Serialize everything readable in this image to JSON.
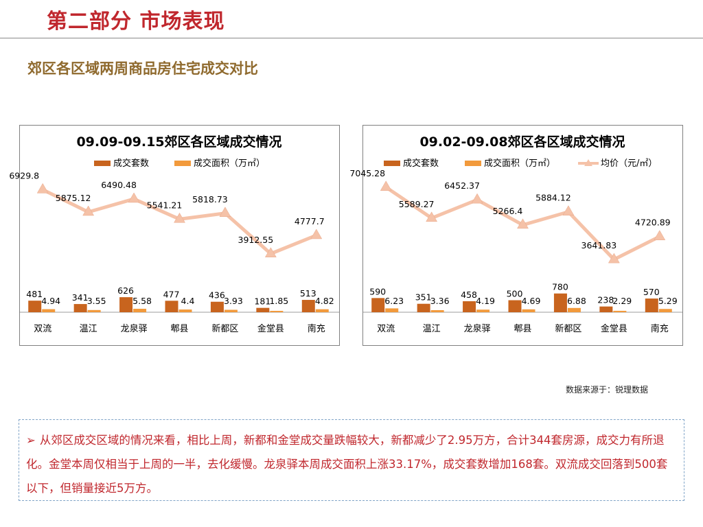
{
  "header": {
    "section_title": "第二部分 市场表现",
    "subtitle": "郊区各区域两周商品房住宅成交对比"
  },
  "colors": {
    "title_red": "#c0272d",
    "subtitle_brown": "#8f6a2e",
    "bar_dark_orange": "#c8641e",
    "bar_light_orange": "#f29a3c",
    "line_pink": "#f5c2a8"
  },
  "chart_data": [
    {
      "type": "bar+line",
      "title": "09.09-09.15郊区各区域成交情况",
      "categories": [
        "双流",
        "温江",
        "龙泉驿",
        "郫县",
        "新都区",
        "金堂县",
        "南充"
      ],
      "legend": [
        "成交套数",
        "成交面积（万㎡）"
      ],
      "series": [
        {
          "name": "成交套数",
          "values": [
            481,
            341,
            626,
            477,
            436,
            181,
            513
          ]
        },
        {
          "name": "成交面积（万㎡）",
          "values": [
            4.94,
            3.55,
            5.58,
            4.4,
            3.93,
            1.85,
            4.82
          ]
        },
        {
          "values": [
            6929.8,
            5875.12,
            6490.48,
            5541.21,
            5818.73,
            3912.55,
            4777.7
          ]
        }
      ],
      "labels": {
        "count": [
          "481",
          "341",
          "626",
          "477",
          "436",
          "181",
          "513"
        ],
        "area": [
          "4.94",
          "3.55",
          "5.58",
          "4.4",
          "3.93",
          "1.85",
          "4.82"
        ],
        "price": [
          "6929.8",
          "5875.12",
          "6490.48",
          "5541.21",
          "5818.73",
          "3912.55",
          "4777.7"
        ]
      },
      "legend_position": "top"
    },
    {
      "type": "bar+line",
      "title": "09.02-09.08郊区各区域成交情况",
      "categories": [
        "双流",
        "温江",
        "龙泉驿",
        "郫县",
        "新都区",
        "金堂县",
        "南充"
      ],
      "legend": [
        "成交套数",
        "成交面积（万㎡）",
        "均价（元/㎡）"
      ],
      "series": [
        {
          "name": "成交套数",
          "values": [
            590,
            351,
            458,
            500,
            780,
            238,
            570
          ]
        },
        {
          "name": "成交面积（万㎡）",
          "values": [
            6.23,
            3.36,
            4.19,
            4.69,
            6.88,
            2.29,
            5.29
          ]
        },
        {
          "name": "均价（元/㎡）",
          "values": [
            7045.28,
            5589.27,
            6452.37,
            5266.4,
            5884.12,
            3641.83,
            4720.89
          ]
        }
      ],
      "labels": {
        "count": [
          "590",
          "351",
          "458",
          "500",
          "780",
          "238",
          "570"
        ],
        "area": [
          "6.23",
          "3.36",
          "4.19",
          "4.69",
          "6.88",
          "2.29",
          "5.29"
        ],
        "price": [
          "7045.28",
          "5589.27",
          "6452.37",
          "5266.4",
          "5884.12",
          "3641.83",
          "4720.89"
        ]
      },
      "legend_position": "top"
    }
  ],
  "source": "数据来源于：锐理数据",
  "note": {
    "bullet": "➢",
    "text": "从郊区成交区域的情况来看，相比上周，新都和金堂成交量跌幅较大，新都减少了2.95万方，合计344套房源，成交力有所退化。金堂本周仅相当于上周的一半，去化缓慢。龙泉驿本周成交面积上涨33.17%，成交套数增加168套。双流成交回落到500套以下，但销量接近5万方。"
  }
}
